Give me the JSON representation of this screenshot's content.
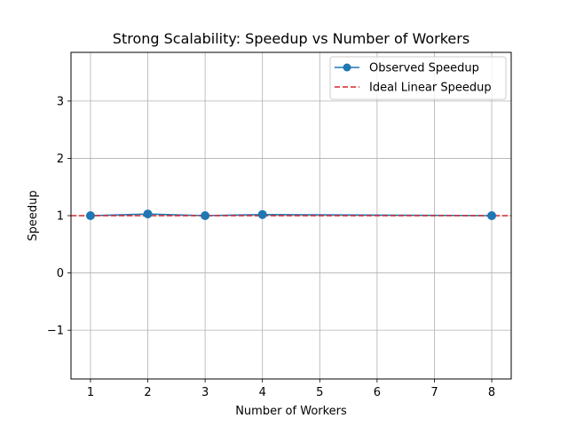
{
  "chart_data": {
    "type": "line",
    "title": "Strong Scalability: Speedup vs Number of Workers",
    "xlabel": "Number of Workers",
    "ylabel": "Speedup",
    "xlim": [
      0.66,
      8.34
    ],
    "ylim": [
      -1.85,
      3.85
    ],
    "xticks": [
      1,
      2,
      3,
      4,
      5,
      6,
      7,
      8
    ],
    "yticks": [
      -1,
      0,
      1,
      2,
      3
    ],
    "ytick_labels": [
      "−1",
      "0",
      "1",
      "2",
      "3"
    ],
    "grid": true,
    "legend_position": "top-right",
    "series": [
      {
        "name": "Observed Speedup",
        "style": "solid-with-circle-markers",
        "color": "#1f77b4",
        "x": [
          1,
          2,
          3,
          4,
          8
        ],
        "y": [
          1.0,
          1.03,
          1.0,
          1.02,
          1.0
        ]
      },
      {
        "name": "Ideal Linear Speedup",
        "style": "dashed",
        "color": "#d62728",
        "x": [
          0.66,
          8.34
        ],
        "y": [
          1.0,
          1.0
        ]
      }
    ]
  }
}
